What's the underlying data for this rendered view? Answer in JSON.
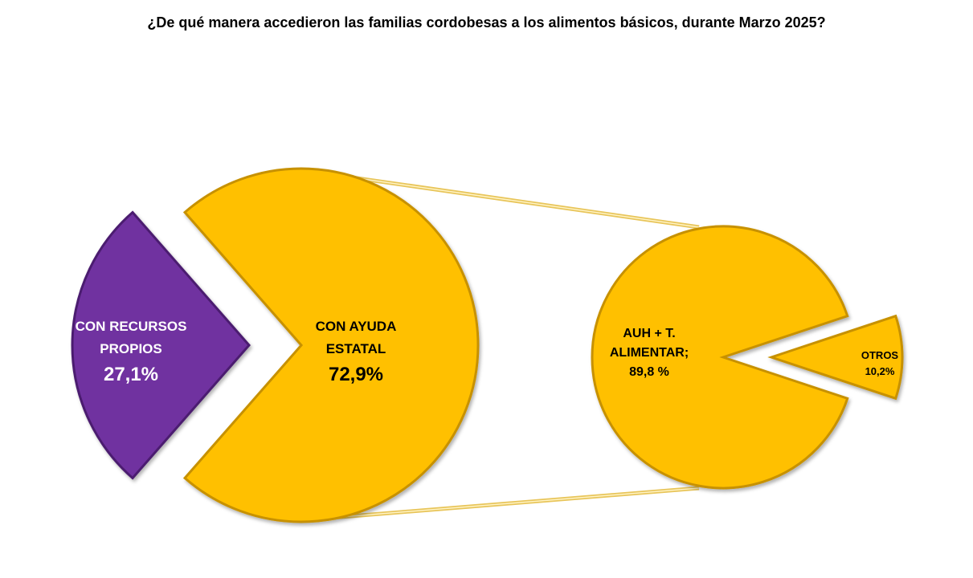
{
  "chart_data": {
    "type": "pie",
    "subtype": "pie-of-pie",
    "title": "¿De qué manera accedieron las familias cordobesas a los alimentos básicos, durante Marzo 2025?",
    "main_pie": {
      "slices": [
        {
          "label_lines": [
            "CON RECURSOS",
            "PROPIOS"
          ],
          "value_label": "27,1%",
          "value": 27.1,
          "color": "#7030A0"
        },
        {
          "label_lines": [
            "CON  AYUDA",
            "ESTATAL"
          ],
          "value_label": "72,9%",
          "value": 72.9,
          "color": "#FFC000"
        }
      ]
    },
    "secondary_pie": {
      "parent_slice": "CON AYUDA ESTATAL",
      "slices": [
        {
          "label_lines": [
            "AUH + T.",
            "ALIMENTAR;",
            "89,8 %"
          ],
          "value": 89.8,
          "color": "#FFC000"
        },
        {
          "label_lines": [
            "OTROS",
            "10,2%"
          ],
          "value": 10.2,
          "color": "#FFC000"
        }
      ]
    },
    "legend": "none",
    "colors": {
      "purple": "#7030A0",
      "gold": "#FFC000",
      "gold_edge": "#C79100",
      "purple_edge": "#4B1F70"
    }
  }
}
